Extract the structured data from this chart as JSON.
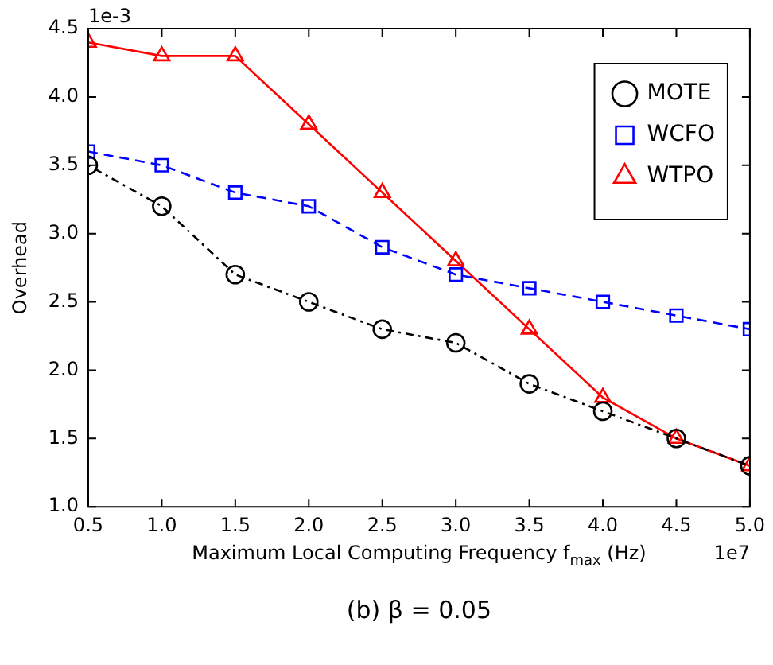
{
  "chart_data": {
    "type": "line",
    "xlabel": "Maximum Local Computing Frequency f$_{max}$ (Hz)",
    "ylabel": "Overhead",
    "x": [
      0.5,
      1.0,
      1.5,
      2.0,
      2.5,
      3.0,
      3.5,
      4.0,
      4.5,
      5.0
    ],
    "series": [
      {
        "name": "MOTE",
        "color": "#000000",
        "marker": "circle",
        "line_style": "dotted",
        "values": [
          3.5,
          3.2,
          2.7,
          2.5,
          2.3,
          2.2,
          1.9,
          1.7,
          1.5,
          1.3
        ]
      },
      {
        "name": "WCFO",
        "color": "#0000ff",
        "marker": "square",
        "line_style": "dashed",
        "values": [
          3.6,
          3.5,
          3.3,
          3.2,
          2.9,
          2.7,
          2.6,
          2.5,
          2.4,
          2.3
        ]
      },
      {
        "name": "WTPO",
        "color": "#ff0000",
        "marker": "triangle",
        "line_style": "solid",
        "values": [
          4.4,
          4.3,
          4.3,
          3.8,
          3.3,
          2.8,
          2.3,
          1.8,
          1.5,
          1.3
        ]
      }
    ],
    "xlim": [
      0.5,
      5.0
    ],
    "xticks": [
      {
        "value": 0.5,
        "label": "0.5"
      },
      {
        "value": 1,
        "label": "1.0"
      },
      {
        "value": 1.5,
        "label": "1.5"
      },
      {
        "value": 2,
        "label": "2.0"
      },
      {
        "value": 2.5,
        "label": "2.5"
      },
      {
        "value": 3,
        "label": "3.0"
      },
      {
        "value": 3.5,
        "label": "3.5"
      },
      {
        "value": 4,
        "label": "4.0"
      },
      {
        "value": 4.5,
        "label": "4.5"
      },
      {
        "value": 5,
        "label": "5.0"
      }
    ],
    "ylim": [
      1.0,
      4.5
    ],
    "yticks": [
      {
        "value": 1,
        "label": "1.0"
      },
      {
        "value": 1.5,
        "label": "1.5"
      },
      {
        "value": 2,
        "label": "2.0"
      },
      {
        "value": 2.5,
        "label": "2.5"
      },
      {
        "value": 3,
        "label": "3.0"
      },
      {
        "value": 3.5,
        "label": "3.5"
      },
      {
        "value": 4,
        "label": "4.0"
      },
      {
        "value": 4.5,
        "label": "4.5"
      }
    ],
    "annotations": [
      "1e-3",
      "1e7",
      "(b) β = 0.05"
    ],
    "legend": "top right",
    "grid": false
  }
}
